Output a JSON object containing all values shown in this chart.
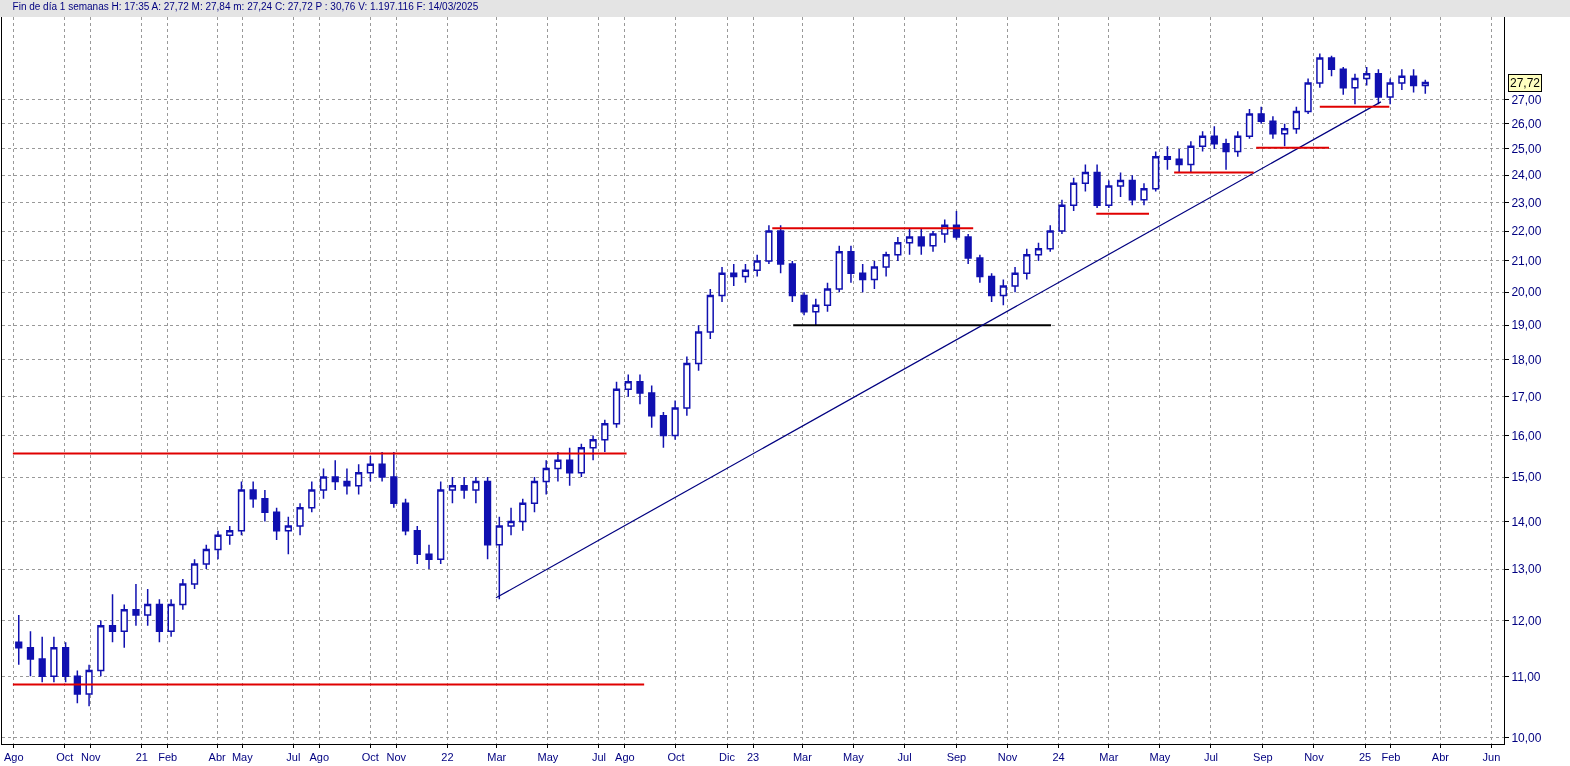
{
  "chart_data": {
    "type": "candlestick",
    "title": "Fin de día 1 semanas H: 17:35 A: 27,72 M: 27,84 m: 27,24 C: 27,72 P : 30,76 V: 1.197.116 F: 14/03/2025",
    "x": [
      "2020-08-07",
      "2020-08-21",
      "2020-09-04",
      "2020-09-18",
      "2020-10-02",
      "2020-10-16",
      "2020-10-30",
      "2020-11-13",
      "2020-11-27",
      "2020-12-11",
      "2020-12-25",
      "2021-01-08",
      "2021-01-22",
      "2021-02-05",
      "2021-02-19",
      "2021-03-05",
      "2021-03-19",
      "2021-04-02",
      "2021-04-16",
      "2021-04-30",
      "2021-05-14",
      "2021-05-28",
      "2021-06-11",
      "2021-06-25",
      "2021-07-09",
      "2021-07-23",
      "2021-08-06",
      "2021-08-20",
      "2021-09-03",
      "2021-09-17",
      "2021-10-01",
      "2021-10-15",
      "2021-10-29",
      "2021-11-12",
      "2021-11-26",
      "2021-12-10",
      "2021-12-24",
      "2022-01-07",
      "2022-01-21",
      "2022-02-04",
      "2022-02-18",
      "2022-03-04",
      "2022-03-18",
      "2022-04-01",
      "2022-04-15",
      "2022-04-29",
      "2022-05-13",
      "2022-05-27",
      "2022-06-10",
      "2022-06-24",
      "2022-07-08",
      "2022-07-22",
      "2022-08-05",
      "2022-08-19",
      "2022-09-02",
      "2022-09-16",
      "2022-09-30",
      "2022-10-14",
      "2022-10-28",
      "2022-11-11",
      "2022-11-25",
      "2022-12-09",
      "2022-12-23",
      "2023-01-06",
      "2023-01-20",
      "2023-02-03",
      "2023-02-17",
      "2023-03-03",
      "2023-03-17",
      "2023-03-31",
      "2023-04-14",
      "2023-04-28",
      "2023-05-12",
      "2023-05-26",
      "2023-06-09",
      "2023-06-23",
      "2023-07-07",
      "2023-07-21",
      "2023-08-04",
      "2023-08-18",
      "2023-09-01",
      "2023-09-15",
      "2023-09-29",
      "2023-10-13",
      "2023-10-27",
      "2023-11-10",
      "2023-11-24",
      "2023-12-08",
      "2023-12-22",
      "2024-01-05",
      "2024-01-19",
      "2024-02-02",
      "2024-02-16",
      "2024-03-01",
      "2024-03-15",
      "2024-03-29",
      "2024-04-12",
      "2024-04-26",
      "2024-05-10",
      "2024-05-24",
      "2024-06-07",
      "2024-06-21",
      "2024-07-05",
      "2024-07-19",
      "2024-08-02",
      "2024-08-16",
      "2024-08-30",
      "2024-09-13",
      "2024-09-27",
      "2024-10-11",
      "2024-10-25",
      "2024-11-08",
      "2024-11-22",
      "2024-12-06",
      "2024-12-20",
      "2025-01-03",
      "2025-01-17",
      "2025-01-31",
      "2025-02-14",
      "2025-02-28",
      "2025-03-14"
    ],
    "ohlc": [
      [
        11.6,
        12.1,
        11.2,
        11.5
      ],
      [
        11.5,
        11.8,
        11.0,
        11.3
      ],
      [
        11.3,
        11.7,
        10.9,
        11.0
      ],
      [
        11.0,
        11.7,
        10.9,
        11.5
      ],
      [
        11.5,
        11.6,
        10.9,
        11.0
      ],
      [
        11.0,
        11.1,
        10.55,
        10.7
      ],
      [
        10.7,
        11.2,
        10.5,
        11.1
      ],
      [
        11.1,
        12.0,
        11.0,
        11.9
      ],
      [
        11.9,
        12.5,
        11.6,
        11.8
      ],
      [
        11.8,
        12.3,
        11.5,
        12.2
      ],
      [
        12.2,
        12.7,
        11.9,
        12.1
      ],
      [
        12.1,
        12.6,
        11.9,
        12.3
      ],
      [
        12.3,
        12.4,
        11.6,
        11.8
      ],
      [
        11.8,
        12.4,
        11.7,
        12.3
      ],
      [
        12.3,
        12.8,
        12.2,
        12.7
      ],
      [
        12.7,
        13.2,
        12.6,
        13.1
      ],
      [
        13.1,
        13.5,
        13.0,
        13.4
      ],
      [
        13.4,
        13.8,
        13.2,
        13.7
      ],
      [
        13.7,
        13.9,
        13.5,
        13.8
      ],
      [
        13.8,
        14.9,
        13.7,
        14.7
      ],
      [
        14.7,
        14.9,
        14.3,
        14.5
      ],
      [
        14.5,
        14.7,
        14.0,
        14.2
      ],
      [
        14.2,
        14.3,
        13.6,
        13.8
      ],
      [
        13.8,
        14.1,
        13.3,
        13.9
      ],
      [
        13.9,
        14.4,
        13.7,
        14.3
      ],
      [
        14.3,
        14.9,
        14.2,
        14.7
      ],
      [
        14.7,
        15.2,
        14.5,
        15.0
      ],
      [
        15.0,
        15.4,
        14.7,
        14.9
      ],
      [
        14.9,
        15.2,
        14.6,
        14.8
      ],
      [
        14.8,
        15.3,
        14.6,
        15.1
      ],
      [
        15.1,
        15.5,
        14.9,
        15.3
      ],
      [
        15.3,
        15.6,
        14.9,
        15.0
      ],
      [
        15.0,
        15.6,
        14.3,
        14.4
      ],
      [
        14.4,
        14.5,
        13.7,
        13.8
      ],
      [
        13.8,
        13.9,
        13.1,
        13.3
      ],
      [
        13.3,
        13.5,
        13.0,
        13.2
      ],
      [
        13.2,
        14.9,
        13.1,
        14.7
      ],
      [
        14.7,
        15.0,
        14.4,
        14.8
      ],
      [
        14.8,
        15.0,
        14.5,
        14.7
      ],
      [
        14.7,
        15.0,
        14.4,
        14.9
      ],
      [
        14.9,
        15.0,
        13.2,
        13.5
      ],
      [
        13.5,
        14.1,
        12.4,
        13.9
      ],
      [
        13.9,
        14.3,
        13.7,
        14.0
      ],
      [
        14.0,
        14.5,
        13.8,
        14.4
      ],
      [
        14.4,
        15.0,
        14.2,
        14.9
      ],
      [
        14.9,
        15.4,
        14.6,
        15.2
      ],
      [
        15.2,
        15.6,
        14.9,
        15.4
      ],
      [
        15.4,
        15.7,
        14.8,
        15.1
      ],
      [
        15.1,
        15.8,
        15.0,
        15.7
      ],
      [
        15.7,
        16.0,
        15.4,
        15.9
      ],
      [
        15.9,
        16.4,
        15.6,
        16.3
      ],
      [
        16.3,
        17.4,
        16.2,
        17.2
      ],
      [
        17.2,
        17.6,
        17.0,
        17.4
      ],
      [
        17.4,
        17.6,
        16.8,
        17.1
      ],
      [
        17.1,
        17.3,
        16.2,
        16.5
      ],
      [
        16.5,
        16.6,
        15.7,
        16.0
      ],
      [
        16.0,
        16.9,
        15.9,
        16.7
      ],
      [
        16.7,
        18.1,
        16.5,
        17.9
      ],
      [
        17.9,
        19.0,
        17.7,
        18.8
      ],
      [
        18.8,
        20.1,
        18.6,
        19.9
      ],
      [
        19.9,
        20.8,
        19.7,
        20.6
      ],
      [
        20.6,
        20.9,
        20.2,
        20.5
      ],
      [
        20.5,
        20.9,
        20.3,
        20.7
      ],
      [
        20.7,
        21.2,
        20.5,
        21.0
      ],
      [
        21.0,
        22.2,
        20.9,
        22.0
      ],
      [
        22.0,
        22.2,
        20.6,
        20.9
      ],
      [
        20.9,
        21.0,
        19.7,
        19.9
      ],
      [
        19.9,
        20.0,
        19.3,
        19.4
      ],
      [
        19.4,
        19.8,
        19.0,
        19.6
      ],
      [
        19.6,
        20.3,
        19.4,
        20.1
      ],
      [
        20.1,
        21.5,
        20.0,
        21.3
      ],
      [
        21.3,
        21.5,
        20.3,
        20.6
      ],
      [
        20.6,
        20.9,
        20.0,
        20.4
      ],
      [
        20.4,
        21.0,
        20.1,
        20.8
      ],
      [
        20.8,
        21.3,
        20.5,
        21.2
      ],
      [
        21.2,
        21.8,
        21.0,
        21.6
      ],
      [
        21.6,
        22.1,
        21.2,
        21.8
      ],
      [
        21.8,
        22.1,
        21.2,
        21.5
      ],
      [
        21.5,
        22.0,
        21.3,
        21.9
      ],
      [
        21.9,
        22.4,
        21.6,
        22.2
      ],
      [
        22.2,
        22.7,
        21.7,
        21.8
      ],
      [
        21.8,
        21.9,
        20.9,
        21.1
      ],
      [
        21.1,
        21.2,
        20.3,
        20.5
      ],
      [
        20.5,
        20.6,
        19.7,
        19.9
      ],
      [
        19.9,
        20.4,
        19.6,
        20.2
      ],
      [
        20.2,
        20.8,
        20.0,
        20.6
      ],
      [
        20.6,
        21.4,
        20.4,
        21.2
      ],
      [
        21.2,
        21.6,
        21.0,
        21.4
      ],
      [
        21.4,
        22.2,
        21.3,
        22.0
      ],
      [
        22.0,
        23.1,
        21.9,
        22.9
      ],
      [
        22.9,
        23.9,
        22.7,
        23.7
      ],
      [
        23.7,
        24.4,
        23.4,
        24.1
      ],
      [
        24.1,
        24.4,
        22.8,
        22.9
      ],
      [
        22.9,
        23.8,
        22.8,
        23.6
      ],
      [
        23.6,
        24.1,
        23.2,
        23.8
      ],
      [
        23.8,
        24.0,
        22.9,
        23.1
      ],
      [
        23.1,
        23.7,
        22.9,
        23.5
      ],
      [
        23.5,
        24.9,
        23.4,
        24.7
      ],
      [
        24.7,
        25.1,
        24.2,
        24.6
      ],
      [
        24.6,
        25.0,
        24.1,
        24.4
      ],
      [
        24.4,
        25.3,
        24.1,
        25.1
      ],
      [
        25.1,
        25.7,
        24.9,
        25.5
      ],
      [
        25.5,
        25.9,
        25.0,
        25.2
      ],
      [
        25.2,
        25.4,
        24.2,
        24.9
      ],
      [
        24.9,
        25.7,
        24.7,
        25.5
      ],
      [
        25.5,
        26.6,
        25.4,
        26.4
      ],
      [
        26.4,
        26.7,
        26.0,
        26.1
      ],
      [
        26.1,
        26.3,
        25.4,
        25.6
      ],
      [
        25.6,
        26.0,
        25.1,
        25.8
      ],
      [
        25.8,
        26.7,
        25.6,
        26.5
      ],
      [
        26.5,
        27.9,
        26.4,
        27.7
      ],
      [
        27.7,
        29.0,
        27.5,
        28.8
      ],
      [
        28.8,
        28.9,
        28.0,
        28.3
      ],
      [
        28.3,
        28.4,
        27.2,
        27.5
      ],
      [
        27.5,
        28.1,
        26.8,
        27.9
      ],
      [
        27.9,
        28.4,
        27.6,
        28.1
      ],
      [
        28.1,
        28.3,
        26.8,
        27.1
      ],
      [
        27.1,
        27.9,
        26.8,
        27.7
      ],
      [
        27.7,
        28.3,
        27.4,
        28.0
      ],
      [
        28.0,
        28.3,
        27.3,
        27.6
      ],
      [
        27.6,
        27.84,
        27.24,
        27.72
      ]
    ],
    "color": "#1010b0",
    "series": [
      {
        "type": "line",
        "color": "#e00000",
        "x": [
          "2020-07-31",
          "2022-08-03"
        ],
        "values": [
          15.56,
          15.56
        ]
      },
      {
        "type": "line",
        "color": "#e00000",
        "x": [
          "2020-07-31",
          "2022-08-24"
        ],
        "values": [
          10.86,
          10.86
        ]
      },
      {
        "type": "line",
        "color": "#e00000",
        "x": [
          "2023-01-24",
          "2023-09-21"
        ],
        "values": [
          22.1,
          22.1
        ]
      },
      {
        "type": "line",
        "color": "#000000",
        "x": [
          "2023-02-18",
          "2023-12-23"
        ],
        "values": [
          19.0,
          19.0
        ]
      },
      {
        "type": "line",
        "color": "#000080",
        "x": [
          "2022-02-28",
          "2025-01-20"
        ],
        "values": [
          12.43,
          26.9
        ]
      },
      {
        "type": "line",
        "color": "#e00000",
        "x": [
          "2024-02-15",
          "2024-04-18"
        ],
        "values": [
          22.6,
          22.6
        ]
      },
      {
        "type": "line",
        "color": "#e00000",
        "x": [
          "2024-05-18",
          "2024-08-21"
        ],
        "values": [
          24.1,
          24.1
        ]
      },
      {
        "type": "line",
        "color": "#e00000",
        "x": [
          "2024-08-24",
          "2024-11-19"
        ],
        "values": [
          25.05,
          25.05
        ]
      },
      {
        "type": "line",
        "color": "#e00000",
        "x": [
          "2024-11-08",
          "2025-01-30"
        ],
        "values": [
          26.7,
          26.7
        ]
      }
    ],
    "annotations": [
      "27,72"
    ],
    "log": true,
    "grid": true,
    "xlim": [
      "2020-07-18",
      "2025-06-16"
    ],
    "xticks": [
      {
        "value": "2020-08-01",
        "label": "Ago"
      },
      {
        "value": "2020-10-01",
        "label": "Oct"
      },
      {
        "value": "2020-11-01",
        "label": "Nov"
      },
      {
        "value": "2021-01-01",
        "label": "21"
      },
      {
        "value": "2021-02-01",
        "label": "Feb"
      },
      {
        "value": "2021-04-01",
        "label": "Abr"
      },
      {
        "value": "2021-05-01",
        "label": "May"
      },
      {
        "value": "2021-07-01",
        "label": "Jul"
      },
      {
        "value": "2021-08-01",
        "label": "Ago"
      },
      {
        "value": "2021-10-01",
        "label": "Oct"
      },
      {
        "value": "2021-11-01",
        "label": "Nov"
      },
      {
        "value": "2022-01-01",
        "label": "22"
      },
      {
        "value": "2022-03-01",
        "label": "Mar"
      },
      {
        "value": "2022-05-01",
        "label": "May"
      },
      {
        "value": "2022-07-01",
        "label": "Jul"
      },
      {
        "value": "2022-08-01",
        "label": "Ago"
      },
      {
        "value": "2022-10-01",
        "label": "Oct"
      },
      {
        "value": "2022-12-01",
        "label": "Dic"
      },
      {
        "value": "2023-01-01",
        "label": "23"
      },
      {
        "value": "2023-03-01",
        "label": "Mar"
      },
      {
        "value": "2023-05-01",
        "label": "May"
      },
      {
        "value": "2023-07-01",
        "label": "Jul"
      },
      {
        "value": "2023-09-01",
        "label": "Sep"
      },
      {
        "value": "2023-11-01",
        "label": "Nov"
      },
      {
        "value": "2024-01-01",
        "label": "24"
      },
      {
        "value": "2024-03-01",
        "label": "Mar"
      },
      {
        "value": "2024-05-01",
        "label": "May"
      },
      {
        "value": "2024-07-01",
        "label": "Jul"
      },
      {
        "value": "2024-09-01",
        "label": "Sep"
      },
      {
        "value": "2024-11-01",
        "label": "Nov"
      },
      {
        "value": "2025-01-01",
        "label": "25"
      },
      {
        "value": "2025-02-01",
        "label": "Feb"
      },
      {
        "value": "2025-04-01",
        "label": "Abr"
      },
      {
        "value": "2025-06-01",
        "label": "Jun"
      }
    ],
    "ylim": [
      9.9,
      30.7
    ],
    "yticks": [
      {
        "value": 10,
        "label": "10,00"
      },
      {
        "value": 11,
        "label": "11,00"
      },
      {
        "value": 12,
        "label": "12,00"
      },
      {
        "value": 13,
        "label": "13,00"
      },
      {
        "value": 14,
        "label": "14,00"
      },
      {
        "value": 15,
        "label": "15,00"
      },
      {
        "value": 16,
        "label": "16,00"
      },
      {
        "value": 17,
        "label": "17,00"
      },
      {
        "value": 18,
        "label": "18,00"
      },
      {
        "value": 19,
        "label": "19,00"
      },
      {
        "value": 20,
        "label": "20,00"
      },
      {
        "value": 21,
        "label": "21,00"
      },
      {
        "value": 22,
        "label": "22,00"
      },
      {
        "value": 23,
        "label": "23,00"
      },
      {
        "value": 24,
        "label": "24,00"
      },
      {
        "value": 25,
        "label": "25,00"
      },
      {
        "value": 26,
        "label": "26,00"
      },
      {
        "value": 27,
        "label": "27,00"
      }
    ]
  }
}
